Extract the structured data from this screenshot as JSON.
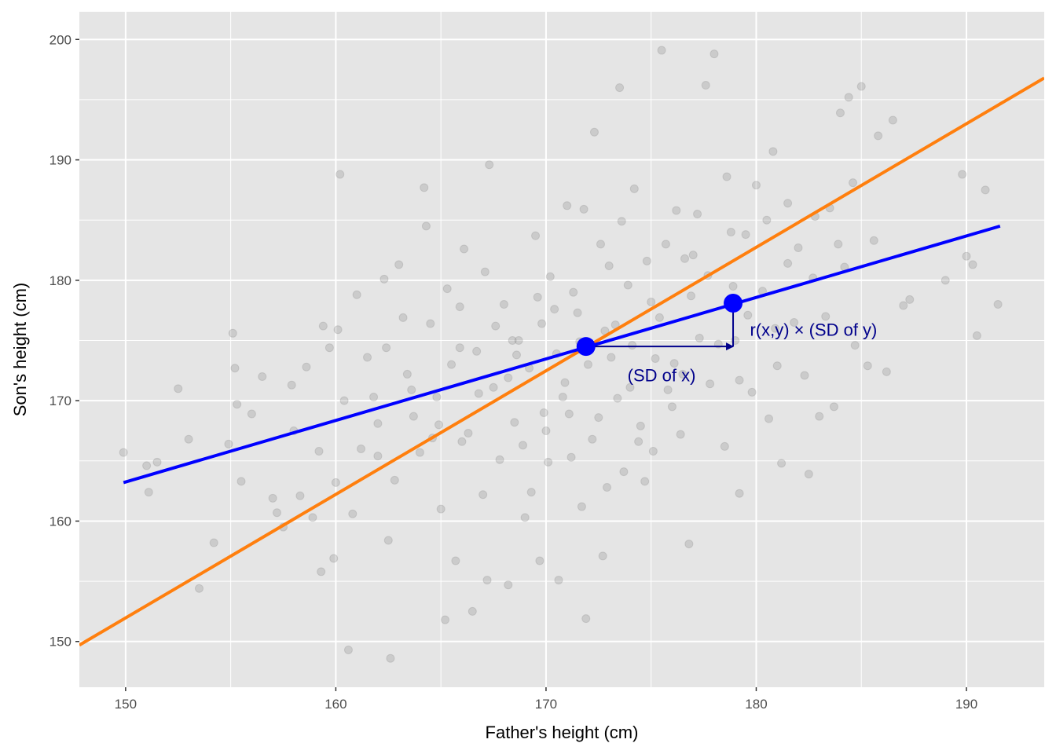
{
  "chart_data": {
    "type": "scatter",
    "xlabel": "Father's height (cm)",
    "ylabel": "Son's height (cm)",
    "xlim": [
      147.8,
      193.7
    ],
    "ylim": [
      146.2,
      202.3
    ],
    "x_ticks": [
      150,
      160,
      170,
      180,
      190
    ],
    "y_ticks": [
      150,
      160,
      170,
      180,
      190,
      200
    ],
    "grid": true,
    "background": "#e5e5e5",
    "points_color": "#7f7f7f",
    "points_opacity": 0.25,
    "scatter_points": [
      [
        149.9,
        165.7
      ],
      [
        151.0,
        164.6
      ],
      [
        151.1,
        162.4
      ],
      [
        151.5,
        164.9
      ],
      [
        152.5,
        171.0
      ],
      [
        153.0,
        166.8
      ],
      [
        153.5,
        154.4
      ],
      [
        154.2,
        158.2
      ],
      [
        154.9,
        166.4
      ],
      [
        155.1,
        175.6
      ],
      [
        155.2,
        172.7
      ],
      [
        155.3,
        169.7
      ],
      [
        155.5,
        163.3
      ],
      [
        156.0,
        168.9
      ],
      [
        156.5,
        172.0
      ],
      [
        157.0,
        161.9
      ],
      [
        157.2,
        160.7
      ],
      [
        157.5,
        159.5
      ],
      [
        157.9,
        171.3
      ],
      [
        158.0,
        167.5
      ],
      [
        158.3,
        162.1
      ],
      [
        158.6,
        172.8
      ],
      [
        158.9,
        160.3
      ],
      [
        159.2,
        165.8
      ],
      [
        159.3,
        155.8
      ],
      [
        159.4,
        176.2
      ],
      [
        159.7,
        174.4
      ],
      [
        159.9,
        156.9
      ],
      [
        160.0,
        163.2
      ],
      [
        160.1,
        175.9
      ],
      [
        160.2,
        188.8
      ],
      [
        160.4,
        170.0
      ],
      [
        160.6,
        149.3
      ],
      [
        160.8,
        160.6
      ],
      [
        161.0,
        178.8
      ],
      [
        161.2,
        166.0
      ],
      [
        161.5,
        173.6
      ],
      [
        162.0,
        165.4
      ],
      [
        162.3,
        180.1
      ],
      [
        162.5,
        158.4
      ],
      [
        162.6,
        148.6
      ],
      [
        162.8,
        163.4
      ],
      [
        163.0,
        181.3
      ],
      [
        163.4,
        172.2
      ],
      [
        163.7,
        168.7
      ],
      [
        164.0,
        165.7
      ],
      [
        164.2,
        187.7
      ],
      [
        164.3,
        184.5
      ],
      [
        164.5,
        176.4
      ],
      [
        164.8,
        170.3
      ],
      [
        165.0,
        161.0
      ],
      [
        165.2,
        151.8
      ],
      [
        165.5,
        173.0
      ],
      [
        165.7,
        156.7
      ],
      [
        165.9,
        177.8
      ],
      [
        166.1,
        182.6
      ],
      [
        166.3,
        167.3
      ],
      [
        166.5,
        152.5
      ],
      [
        166.7,
        174.1
      ],
      [
        167.0,
        162.2
      ],
      [
        167.2,
        155.1
      ],
      [
        167.3,
        189.6
      ],
      [
        167.5,
        171.1
      ],
      [
        167.8,
        165.1
      ],
      [
        168.0,
        178.0
      ],
      [
        168.2,
        154.7
      ],
      [
        168.5,
        168.2
      ],
      [
        168.7,
        175.0
      ],
      [
        169.0,
        160.3
      ],
      [
        169.2,
        172.7
      ],
      [
        169.5,
        183.7
      ],
      [
        169.7,
        156.7
      ],
      [
        170.0,
        167.5
      ],
      [
        170.2,
        180.3
      ],
      [
        170.5,
        173.9
      ],
      [
        170.6,
        155.1
      ],
      [
        170.8,
        170.3
      ],
      [
        171.0,
        186.2
      ],
      [
        171.2,
        165.3
      ],
      [
        171.5,
        177.3
      ],
      [
        171.7,
        161.2
      ],
      [
        171.9,
        151.9
      ],
      [
        172.0,
        173.0
      ],
      [
        172.3,
        192.3
      ],
      [
        172.5,
        168.6
      ],
      [
        172.7,
        157.1
      ],
      [
        173.0,
        181.2
      ],
      [
        173.3,
        176.3
      ],
      [
        173.5,
        196.0
      ],
      [
        173.7,
        164.1
      ],
      [
        174.0,
        171.1
      ],
      [
        174.2,
        187.6
      ],
      [
        174.5,
        167.9
      ],
      [
        174.7,
        163.3
      ],
      [
        175.0,
        178.2
      ],
      [
        175.2,
        173.5
      ],
      [
        175.5,
        199.1
      ],
      [
        175.7,
        183.0
      ],
      [
        176.0,
        169.5
      ],
      [
        176.2,
        185.8
      ],
      [
        176.5,
        172.2
      ],
      [
        176.8,
        158.1
      ],
      [
        177.0,
        182.1
      ],
      [
        177.3,
        175.2
      ],
      [
        177.6,
        196.2
      ],
      [
        177.8,
        171.4
      ],
      [
        178.0,
        198.8
      ],
      [
        178.2,
        174.7
      ],
      [
        178.5,
        166.2
      ],
      [
        178.8,
        184.0
      ],
      [
        179.0,
        175.0
      ],
      [
        179.2,
        162.3
      ],
      [
        179.5,
        183.8
      ],
      [
        179.8,
        170.7
      ],
      [
        180.0,
        187.9
      ],
      [
        180.3,
        179.1
      ],
      [
        180.6,
        168.5
      ],
      [
        180.8,
        190.7
      ],
      [
        181.0,
        172.9
      ],
      [
        181.2,
        164.8
      ],
      [
        181.5,
        186.4
      ],
      [
        181.8,
        176.5
      ],
      [
        182.0,
        182.7
      ],
      [
        182.3,
        172.1
      ],
      [
        182.5,
        163.9
      ],
      [
        182.8,
        185.3
      ],
      [
        183.0,
        168.7
      ],
      [
        183.3,
        177.0
      ],
      [
        183.5,
        186.0
      ],
      [
        183.7,
        169.5
      ],
      [
        184.0,
        193.9
      ],
      [
        184.2,
        181.1
      ],
      [
        184.4,
        195.2
      ],
      [
        184.7,
        174.6
      ],
      [
        185.0,
        196.1
      ],
      [
        185.3,
        172.9
      ],
      [
        185.6,
        183.3
      ],
      [
        185.8,
        192.0
      ],
      [
        186.2,
        172.4
      ],
      [
        186.5,
        193.3
      ],
      [
        187.0,
        177.9
      ],
      [
        187.3,
        178.4
      ],
      [
        189.0,
        180.0
      ],
      [
        189.8,
        188.8
      ],
      [
        190.0,
        182.0
      ],
      [
        190.3,
        181.3
      ],
      [
        190.5,
        175.4
      ],
      [
        190.9,
        187.5
      ],
      [
        191.5,
        178.0
      ],
      [
        168.6,
        173.8
      ],
      [
        169.8,
        176.4
      ],
      [
        170.9,
        171.5
      ],
      [
        171.6,
        174.9
      ],
      [
        172.8,
        175.8
      ],
      [
        173.4,
        170.2
      ],
      [
        174.1,
        174.6
      ],
      [
        175.4,
        176.9
      ],
      [
        176.1,
        173.1
      ],
      [
        176.9,
        178.7
      ],
      [
        168.2,
        171.9
      ],
      [
        167.6,
        176.2
      ],
      [
        166.8,
        170.6
      ],
      [
        165.9,
        174.4
      ],
      [
        173.9,
        179.6
      ],
      [
        174.8,
        181.6
      ],
      [
        171.3,
        179.0
      ],
      [
        169.9,
        169.0
      ],
      [
        172.2,
        166.8
      ],
      [
        170.4,
        177.6
      ],
      [
        177.7,
        180.4
      ],
      [
        178.9,
        179.5
      ],
      [
        176.6,
        181.8
      ],
      [
        175.8,
        170.9
      ],
      [
        163.6,
        170.9
      ],
      [
        164.9,
        168.0
      ],
      [
        162.4,
        174.4
      ],
      [
        161.8,
        170.3
      ],
      [
        179.6,
        177.1
      ],
      [
        180.9,
        176.0
      ],
      [
        167.1,
        180.7
      ],
      [
        165.3,
        179.3
      ],
      [
        173.6,
        184.9
      ],
      [
        172.6,
        183.0
      ],
      [
        171.8,
        185.9
      ],
      [
        177.2,
        185.5
      ],
      [
        178.6,
        188.6
      ],
      [
        180.5,
        185.0
      ],
      [
        182.7,
        180.2
      ],
      [
        184.6,
        188.1
      ],
      [
        168.9,
        166.3
      ],
      [
        170.1,
        164.9
      ],
      [
        174.4,
        166.6
      ],
      [
        176.4,
        167.2
      ],
      [
        166.0,
        166.6
      ],
      [
        164.6,
        166.9
      ],
      [
        169.3,
        162.4
      ],
      [
        172.9,
        162.8
      ],
      [
        175.1,
        165.8
      ],
      [
        163.2,
        176.9
      ],
      [
        162.0,
        168.1
      ],
      [
        181.5,
        181.4
      ],
      [
        183.9,
        183.0
      ],
      [
        179.2,
        171.7
      ],
      [
        171.1,
        168.9
      ],
      [
        173.1,
        173.6
      ],
      [
        169.6,
        178.6
      ],
      [
        168.4,
        175.0
      ]
    ],
    "series": [
      {
        "type": "line",
        "color": "#ff7f0e",
        "x": [
          147.8,
          193.7
        ],
        "y": [
          149.7,
          196.8
        ]
      },
      {
        "type": "line",
        "color": "#0000ff",
        "x": [
          149.9,
          191.6
        ],
        "y": [
          163.2,
          184.5
        ]
      }
    ],
    "highlight_points": [
      [
        171.9,
        174.5
      ],
      [
        178.9,
        178.1
      ]
    ],
    "highlight_color": "#0000ff",
    "arrows": [
      {
        "from": [
          171.9,
          174.5
        ],
        "to": [
          178.9,
          174.5
        ]
      },
      {
        "from": [
          178.9,
          174.5
        ],
        "to": [
          178.9,
          178.1
        ]
      }
    ],
    "arrow_color": "#00008b",
    "annotations": [
      {
        "text": "(SD of x)",
        "x": 175.5,
        "y": 171.6,
        "anchor": "middle"
      },
      {
        "text": "r(x,y) × (SD of y)",
        "x": 179.7,
        "y": 175.4,
        "anchor": "start"
      }
    ]
  }
}
